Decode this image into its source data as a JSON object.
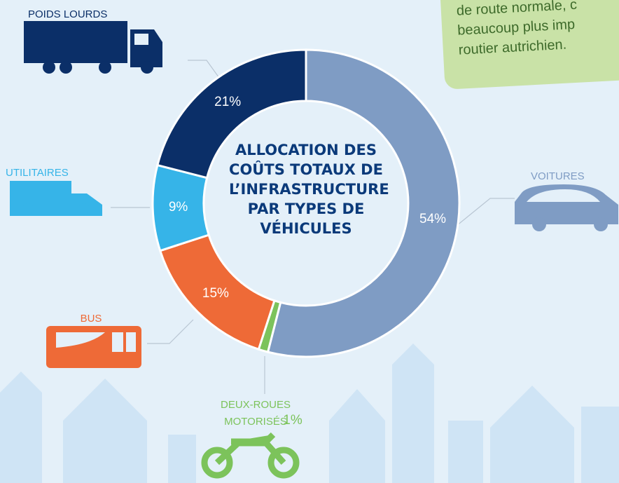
{
  "chart_data": {
    "type": "donut",
    "title": "ALLOCATION DES COÛTS TOTAUX DE L’INFRASTRUCTURE PAR TYPES DE VÉHICULES",
    "categories": [
      "VOITURES",
      "DEUX-ROUES MOTORISÉS",
      "BUS",
      "UTILITAIRES",
      "POIDS LOURDS"
    ],
    "values": [
      54,
      1,
      15,
      9,
      21
    ],
    "value_labels": [
      "54%",
      "1%",
      "15%",
      "9%",
      "21%"
    ],
    "colors": [
      "#7f9cc4",
      "#7cc35b",
      "#ee6a37",
      "#36b4e8",
      "#0b2f68"
    ],
    "annotations": [
      "de route normale, c",
      "beaucoup plus imp",
      "routier autrichien."
    ]
  }
}
